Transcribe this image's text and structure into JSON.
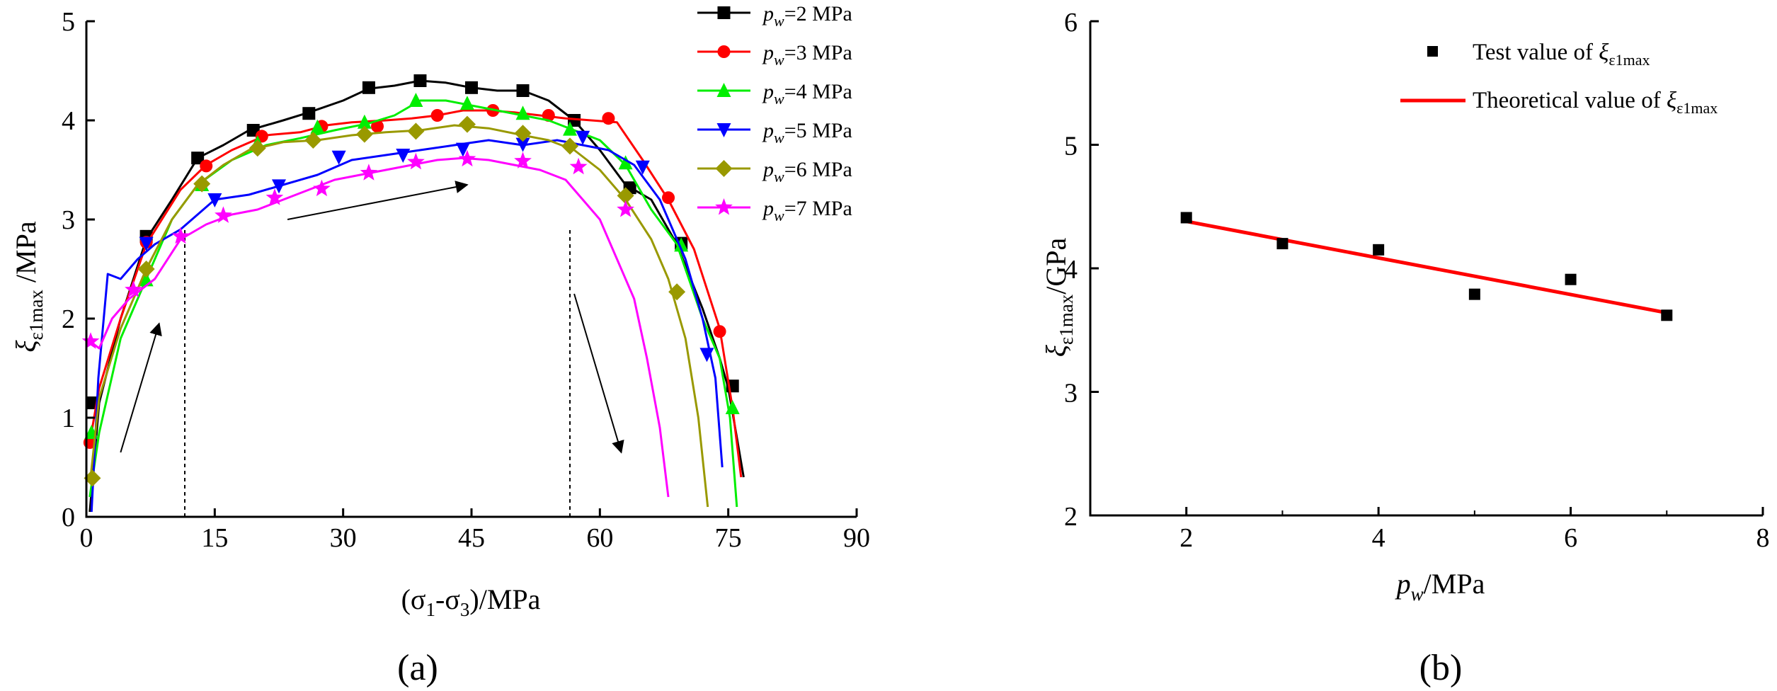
{
  "panel_labels": {
    "a": "(a)",
    "b": "(b)"
  },
  "chart_data": [
    {
      "type": "line",
      "panel": "(a)",
      "xlabel": "(σ1-σ3)/MPa",
      "ylabel": "ξε1max/MPa",
      "xlim": [
        0,
        90
      ],
      "ylim": [
        0,
        5
      ],
      "xticks": [
        "0",
        "15",
        "30",
        "45",
        "60",
        "75",
        "90"
      ],
      "yticks": [
        "0",
        "1",
        "2",
        "3",
        "4",
        "5"
      ],
      "legend_position": "top-right",
      "vertical_dashed_lines_x": [
        11.5,
        56.5
      ],
      "series": [
        {
          "name": "pw=2 MPa",
          "pw": "2",
          "color": "#000000",
          "marker": "square",
          "x": [
            0.4,
            1.5,
            4,
            7,
            10,
            13,
            16,
            19,
            23,
            26,
            30,
            33,
            36,
            39,
            42,
            45,
            48,
            51,
            54,
            57,
            60,
            63,
            66,
            69,
            72,
            74,
            75,
            76,
            76.8
          ],
          "y": [
            0.05,
            1.15,
            2.0,
            2.8,
            3.2,
            3.62,
            3.75,
            3.9,
            4.0,
            4.08,
            4.2,
            4.32,
            4.35,
            4.4,
            4.38,
            4.33,
            4.3,
            4.3,
            4.2,
            4.0,
            3.7,
            3.35,
            3.2,
            2.75,
            2.1,
            1.6,
            1.3,
            0.8,
            0.4
          ],
          "mx": [
            0.8,
            7,
            13,
            19.5,
            26,
            33,
            39,
            45,
            51,
            57,
            63.5,
            69.5,
            75.5
          ],
          "my": [
            1.15,
            2.83,
            3.62,
            3.9,
            4.07,
            4.33,
            4.4,
            4.33,
            4.3,
            4.0,
            3.32,
            2.76,
            1.32
          ]
        },
        {
          "name": "pw=3 MPa",
          "pw": "3",
          "color": "#ff0000",
          "marker": "circle",
          "x": [
            0.3,
            1.5,
            4,
            7,
            11,
            14,
            17,
            21,
            25,
            28,
            31,
            35,
            38,
            41,
            44,
            47,
            50,
            53,
            56,
            59,
            62,
            65,
            68,
            71,
            74,
            75.5,
            76.5
          ],
          "y": [
            0.7,
            1.3,
            2.0,
            2.75,
            3.3,
            3.55,
            3.7,
            3.85,
            3.88,
            3.95,
            3.98,
            4.0,
            4.02,
            4.05,
            4.1,
            4.1,
            4.08,
            4.05,
            4.02,
            4.0,
            3.98,
            3.6,
            3.2,
            2.7,
            1.9,
            1.1,
            0.4
          ],
          "mx": [
            0.4,
            7,
            14,
            20.5,
            27.5,
            34,
            41,
            47.5,
            54,
            61,
            68,
            74
          ],
          "my": [
            0.75,
            2.77,
            3.54,
            3.84,
            3.94,
            3.94,
            4.05,
            4.1,
            4.05,
            4.02,
            3.22,
            1.87
          ]
        },
        {
          "name": "pw=4 MPa",
          "pw": "4",
          "color": "#00ee00",
          "marker": "triangle-up",
          "x": [
            0.4,
            1.5,
            4,
            7,
            10,
            13,
            17,
            21,
            25,
            29,
            33,
            36,
            39,
            42,
            45,
            48,
            51,
            54,
            57,
            60,
            63,
            66,
            69,
            72,
            74,
            75.2,
            76
          ],
          "y": [
            0.2,
            0.85,
            1.8,
            2.4,
            3.0,
            3.35,
            3.6,
            3.75,
            3.82,
            3.9,
            3.97,
            4.05,
            4.2,
            4.2,
            4.15,
            4.1,
            4.05,
            4.0,
            3.9,
            3.8,
            3.55,
            3.1,
            2.75,
            2.0,
            1.6,
            1.0,
            0.1
          ],
          "mx": [
            0.6,
            7,
            13.5,
            20,
            27,
            32.5,
            38.5,
            44.5,
            51,
            56.5,
            63,
            69.5,
            75.5
          ],
          "my": [
            0.85,
            2.39,
            3.35,
            3.77,
            3.93,
            3.98,
            4.2,
            4.17,
            4.07,
            3.91,
            3.57,
            2.74,
            1.1
          ]
        },
        {
          "name": "pw=5 MPa",
          "pw": "5",
          "color": "#0000ff",
          "marker": "triangle-down",
          "x": [
            0.6,
            1.4,
            2.5,
            4,
            6,
            8,
            11,
            15,
            19,
            23,
            27,
            31,
            35,
            39,
            43,
            47,
            51,
            55,
            58,
            61,
            64,
            67,
            70,
            72,
            73.5,
            74.3
          ],
          "y": [
            0.05,
            1.4,
            2.45,
            2.4,
            2.6,
            2.75,
            2.9,
            3.2,
            3.25,
            3.35,
            3.45,
            3.6,
            3.65,
            3.7,
            3.75,
            3.8,
            3.75,
            3.8,
            3.75,
            3.7,
            3.55,
            3.2,
            2.6,
            2.0,
            1.4,
            0.5
          ],
          "mx": [
            7,
            15,
            22.5,
            29.5,
            37,
            44,
            51,
            58,
            65,
            72.5
          ],
          "my": [
            2.76,
            3.2,
            3.34,
            3.63,
            3.65,
            3.71,
            3.76,
            3.83,
            3.53,
            1.64
          ]
        },
        {
          "name": "pw=6 MPa",
          "pw": "6",
          "color": "#999900",
          "marker": "diamond",
          "x": [
            0.5,
            1.5,
            4,
            7,
            10,
            13,
            16,
            19,
            23,
            27,
            31,
            35,
            39,
            43,
            47,
            51,
            54,
            57,
            60,
            63,
            66,
            68,
            70,
            71.5,
            72.6
          ],
          "y": [
            0.4,
            1.2,
            1.9,
            2.5,
            3.0,
            3.35,
            3.55,
            3.7,
            3.78,
            3.8,
            3.85,
            3.88,
            3.9,
            3.95,
            3.92,
            3.85,
            3.8,
            3.7,
            3.5,
            3.2,
            2.8,
            2.4,
            1.8,
            1.0,
            0.1
          ],
          "mx": [
            0.7,
            7,
            13.5,
            20,
            26.5,
            32.5,
            38.5,
            44.5,
            51,
            56.5,
            63,
            69
          ],
          "my": [
            0.39,
            2.5,
            3.36,
            3.72,
            3.8,
            3.86,
            3.89,
            3.96,
            3.87,
            3.74,
            3.24,
            2.27
          ]
        },
        {
          "name": "pw=7 MPa",
          "pw": "7",
          "color": "#ff00ff",
          "marker": "star",
          "x": [
            0.3,
            1.5,
            3,
            5,
            8,
            11,
            14,
            17,
            20,
            23,
            26,
            29,
            32,
            35,
            38,
            41,
            44,
            47,
            50,
            53,
            56,
            58,
            60,
            62,
            64,
            65.5,
            67,
            68
          ],
          "y": [
            1.78,
            1.7,
            2.0,
            2.2,
            2.4,
            2.8,
            2.95,
            3.05,
            3.1,
            3.2,
            3.3,
            3.4,
            3.45,
            3.5,
            3.55,
            3.6,
            3.62,
            3.6,
            3.55,
            3.5,
            3.4,
            3.2,
            3.0,
            2.6,
            2.2,
            1.6,
            0.9,
            0.2
          ],
          "mx": [
            0.5,
            5.5,
            11,
            16,
            22,
            27.5,
            33,
            38.5,
            44.5,
            51,
            57.5,
            63
          ],
          "my": [
            1.77,
            2.29,
            2.83,
            3.04,
            3.22,
            3.31,
            3.47,
            3.58,
            3.61,
            3.59,
            3.53,
            3.1
          ]
        }
      ],
      "annotations": [
        {
          "type": "arrow",
          "from": [
            4,
            0.65
          ],
          "to": [
            8.5,
            1.95
          ]
        },
        {
          "type": "arrow",
          "from": [
            23.5,
            3.0
          ],
          "to": [
            44.5,
            3.35
          ]
        },
        {
          "type": "arrow",
          "from": [
            57,
            2.25
          ],
          "to": [
            62.5,
            0.65
          ]
        }
      ]
    },
    {
      "type": "scatter",
      "panel": "(b)",
      "xlabel": "pw/MPa",
      "ylabel": "ξε1max/GPa",
      "xlim": [
        1,
        8
      ],
      "ylim": [
        2,
        6
      ],
      "xticks": [
        "2",
        "4",
        "6",
        "8"
      ],
      "yticks": [
        "2",
        "3",
        "4",
        "5",
        "6"
      ],
      "legend_position": "top-right",
      "legend": [
        "Test value of ξε1max",
        "Theoretical value of ξε1max"
      ],
      "points": {
        "x": [
          2,
          3,
          4,
          5,
          6,
          7
        ],
        "y": [
          4.41,
          4.2,
          4.15,
          3.79,
          3.91,
          3.62
        ]
      },
      "fit_line": {
        "x": [
          2,
          7
        ],
        "y": [
          4.38,
          3.64
        ],
        "color": "#ff0000"
      },
      "marker_color": "#000000"
    }
  ]
}
